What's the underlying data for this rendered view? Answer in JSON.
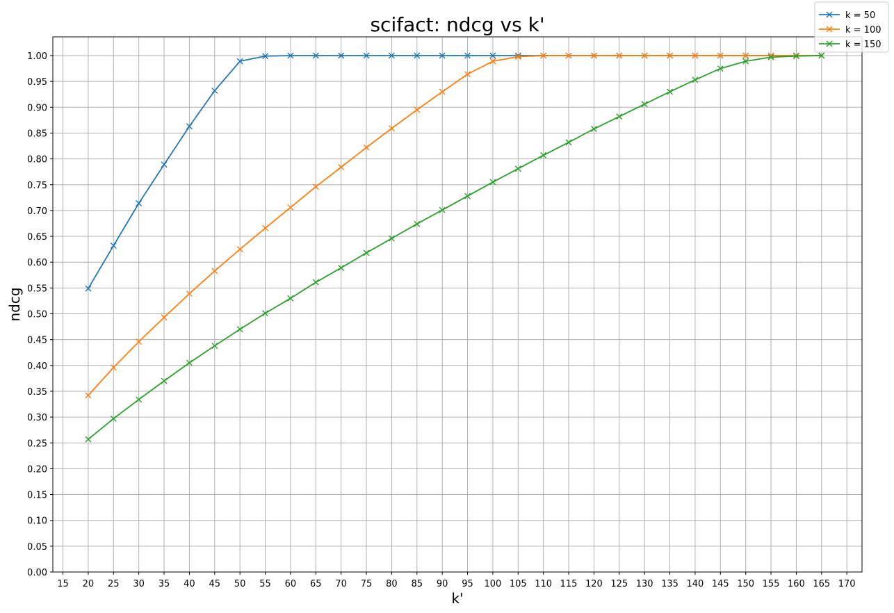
{
  "chart_data": {
    "type": "line",
    "title": "scifact: ndcg vs k'",
    "xlabel": "k'",
    "ylabel": "ndcg",
    "xlim": [
      13,
      173
    ],
    "ylim": [
      0,
      1.0
    ],
    "xticks": [
      15,
      20,
      25,
      30,
      35,
      40,
      45,
      50,
      55,
      60,
      65,
      70,
      75,
      80,
      85,
      90,
      95,
      100,
      105,
      110,
      115,
      120,
      125,
      130,
      135,
      140,
      145,
      150,
      155,
      160,
      165,
      170
    ],
    "yticks": [
      "0.00",
      "0.05",
      "0.10",
      "0.15",
      "0.20",
      "0.25",
      "0.30",
      "0.35",
      "0.40",
      "0.45",
      "0.50",
      "0.55",
      "0.60",
      "0.65",
      "0.70",
      "0.75",
      "0.80",
      "0.85",
      "0.90",
      "0.95",
      "1.00"
    ],
    "grid": true,
    "legend_position": "top-right",
    "marker": "x",
    "series": [
      {
        "name": "k = 50",
        "color": "#1f77b4",
        "x": [
          20,
          25,
          30,
          35,
          40,
          45,
          50,
          55,
          60,
          65,
          70,
          75,
          80,
          85,
          90,
          95,
          100,
          105,
          110,
          115,
          120,
          125,
          130,
          135,
          140,
          145,
          150,
          155,
          160,
          165
        ],
        "y": [
          0.549,
          0.632,
          0.714,
          0.789,
          0.863,
          0.932,
          0.989,
          0.999,
          1.0,
          1.0,
          1.0,
          1.0,
          1.0,
          1.0,
          1.0,
          1.0,
          1.0,
          1.0,
          1.0,
          1.0,
          1.0,
          1.0,
          1.0,
          1.0,
          1.0,
          1.0,
          1.0,
          1.0,
          1.0,
          1.0
        ]
      },
      {
        "name": "k = 100",
        "color": "#ff7f0e",
        "x": [
          20,
          25,
          30,
          35,
          40,
          45,
          50,
          55,
          60,
          65,
          70,
          75,
          80,
          85,
          90,
          95,
          100,
          105,
          110,
          115,
          120,
          125,
          130,
          135,
          140,
          145,
          150,
          155,
          160,
          165
        ],
        "y": [
          0.342,
          0.396,
          0.446,
          0.493,
          0.539,
          0.583,
          0.625,
          0.666,
          0.706,
          0.746,
          0.784,
          0.822,
          0.859,
          0.895,
          0.93,
          0.964,
          0.989,
          0.998,
          1.0,
          1.0,
          1.0,
          1.0,
          1.0,
          1.0,
          1.0,
          1.0,
          1.0,
          1.0,
          1.0,
          1.0
        ]
      },
      {
        "name": "k = 150",
        "color": "#2ca02c",
        "x": [
          20,
          25,
          30,
          35,
          40,
          45,
          50,
          55,
          60,
          65,
          70,
          75,
          80,
          85,
          90,
          95,
          100,
          105,
          110,
          115,
          120,
          125,
          130,
          135,
          140,
          145,
          150,
          155,
          160,
          165
        ],
        "y": [
          0.257,
          0.297,
          0.334,
          0.37,
          0.405,
          0.438,
          0.47,
          0.501,
          0.53,
          0.561,
          0.589,
          0.618,
          0.646,
          0.674,
          0.701,
          0.728,
          0.755,
          0.781,
          0.807,
          0.832,
          0.858,
          0.882,
          0.906,
          0.93,
          0.953,
          0.975,
          0.989,
          0.997,
          0.999,
          1.0
        ]
      }
    ]
  }
}
